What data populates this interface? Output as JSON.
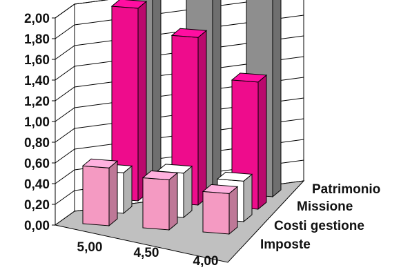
{
  "chart_data": {
    "type": "bar",
    "subtype": "3d-column",
    "categories": [
      "5,00",
      "4,50",
      "4,00"
    ],
    "series": [
      {
        "name": "Imposte",
        "values": [
          0.6,
          0.52,
          0.42
        ],
        "color": "#F49AC2"
      },
      {
        "name": "Costi gestione",
        "values": [
          0.42,
          0.46,
          0.42
        ],
        "color": "#FFFFFF"
      },
      {
        "name": "Missione",
        "values": [
          2.0,
          1.74,
          1.32
        ],
        "color": "#EE0C8C"
      },
      {
        "name": "Patrimonio",
        "values": [
          2.2,
          2.2,
          2.2
        ],
        "color": "#8E8E8E"
      }
    ],
    "y_ticks": [
      "0,00",
      "0,20",
      "0,40",
      "0,60",
      "0,80",
      "1,00",
      "1,20",
      "1,40",
      "1,60",
      "1,80",
      "2,00"
    ],
    "ylim": [
      0,
      2.0
    ],
    "grid": true,
    "floor_color": "#C0C0C0"
  }
}
